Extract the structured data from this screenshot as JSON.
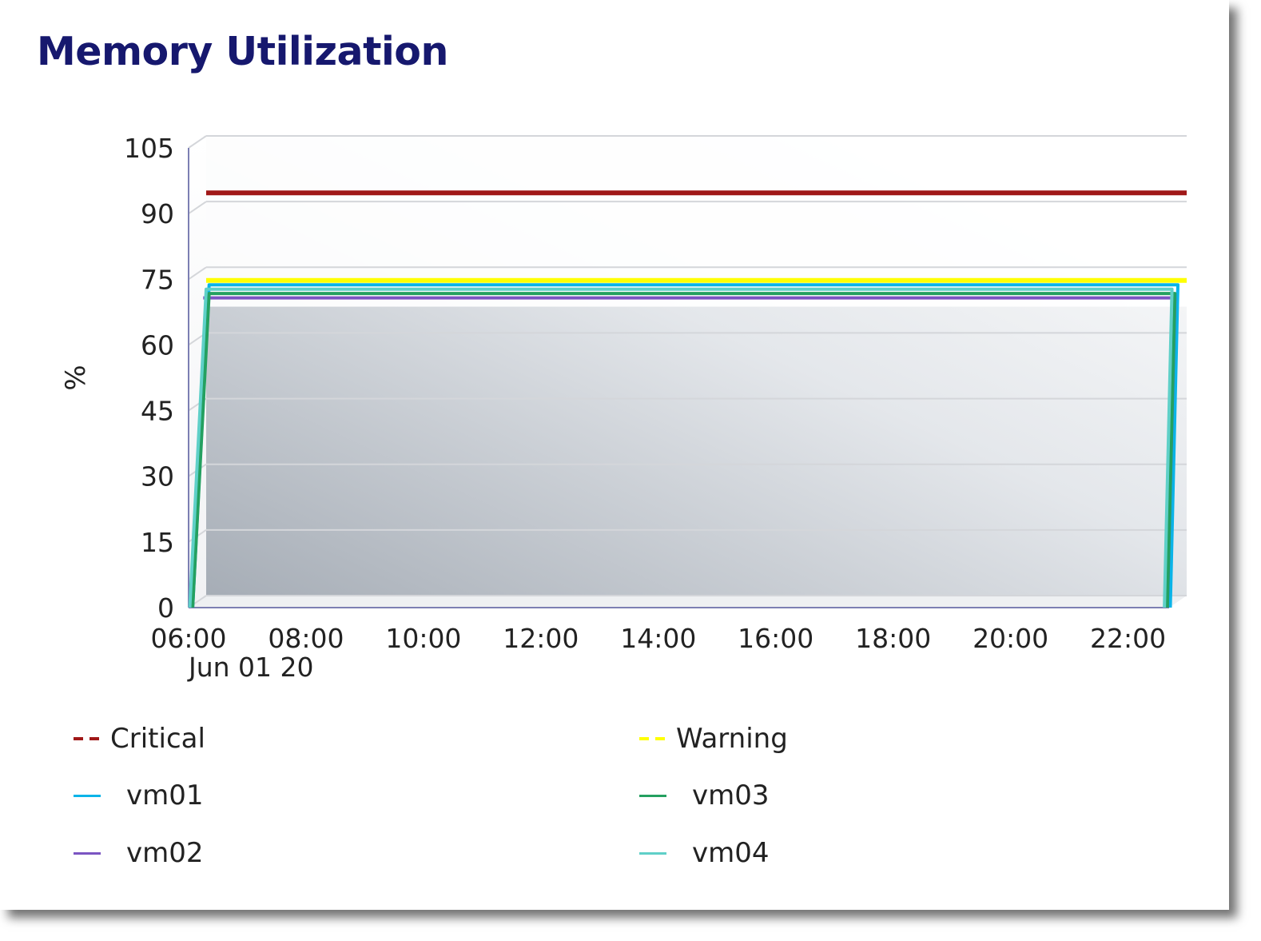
{
  "title": "Memory Utilization",
  "chart_data": {
    "type": "line",
    "title": "Memory Utilization",
    "ylabel": "%",
    "xlabel": "",
    "ylim": [
      0,
      105
    ],
    "yticks": [
      0,
      15,
      30,
      45,
      60,
      75,
      90,
      105
    ],
    "xlim": [
      6.0,
      22.7
    ],
    "xticks": [
      {
        "x": 6,
        "label": "06:00"
      },
      {
        "x": 8,
        "label": "08:00"
      },
      {
        "x": 10,
        "label": "10:00"
      },
      {
        "x": 12,
        "label": "12:00"
      },
      {
        "x": 14,
        "label": "14:00"
      },
      {
        "x": 16,
        "label": "16:00"
      },
      {
        "x": 18,
        "label": "18:00"
      },
      {
        "x": 20,
        "label": "20:00"
      },
      {
        "x": 22,
        "label": "22:00"
      }
    ],
    "date_label": "Jun 01 20",
    "grid": true,
    "legend_position": "bottom",
    "series": [
      {
        "name": "Critical",
        "color": "#a01818",
        "style": "dashed",
        "x": [
          6.0,
          22.7
        ],
        "values": [
          92,
          92
        ]
      },
      {
        "name": "Warning",
        "color": "#ffff00",
        "style": "dashed",
        "x": [
          6.0,
          22.7
        ],
        "values": [
          72,
          72
        ]
      },
      {
        "name": "vm01",
        "color": "#0ab4e8",
        "style": "solid",
        "x": [
          5.95,
          6.05,
          22.55,
          22.6
        ],
        "values": [
          0,
          71,
          71,
          0
        ]
      },
      {
        "name": "vm02",
        "color": "#7b55c2",
        "style": "solid",
        "x": [
          5.95,
          6.0,
          22.5,
          22.55
        ],
        "values": [
          68,
          68,
          68,
          0
        ]
      },
      {
        "name": "vm03",
        "color": "#24a060",
        "style": "solid",
        "x": [
          5.95,
          6.05,
          22.5,
          22.55
        ],
        "values": [
          0,
          69,
          69,
          0
        ]
      },
      {
        "name": "vm04",
        "color": "#5fd0c8",
        "style": "solid",
        "x": [
          5.9,
          6.0,
          22.45,
          22.5
        ],
        "values": [
          0,
          70,
          70,
          0
        ]
      }
    ]
  },
  "legend": [
    {
      "label": "Critical",
      "color": "#a01818",
      "style": "dashed"
    },
    {
      "label": "Warning",
      "color": "#ffff00",
      "style": "dashed"
    },
    {
      "label": "vm01",
      "color": "#0ab4e8",
      "style": "solid"
    },
    {
      "label": "vm03",
      "color": "#24a060",
      "style": "solid"
    },
    {
      "label": "vm02",
      "color": "#7b55c2",
      "style": "solid"
    },
    {
      "label": "vm04",
      "color": "#5fd0c8",
      "style": "solid"
    }
  ]
}
